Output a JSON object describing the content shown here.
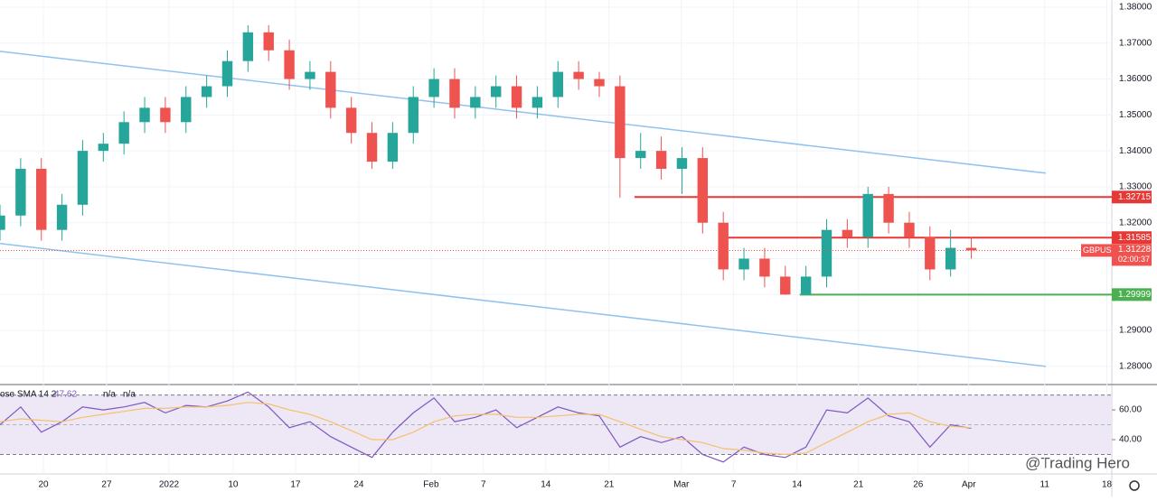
{
  "chart_data": [
    {
      "type": "candlestick",
      "symbol": "GBPUSD",
      "last": 1.31228,
      "countdown": "02:00:37",
      "up_color": "#26a69a",
      "down_color": "#ef5350",
      "x": [
        0,
        1,
        2,
        3,
        4,
        5,
        6,
        7,
        8,
        9,
        10,
        11,
        12,
        13,
        14,
        15,
        16,
        17,
        18,
        19,
        20,
        21,
        22,
        23,
        24,
        25,
        26,
        27,
        28,
        29,
        30,
        31,
        32,
        33,
        34,
        35,
        36,
        37,
        38,
        39,
        40,
        41,
        42,
        43,
        44,
        45,
        46,
        47
      ],
      "open": [
        1.318,
        1.322,
        1.335,
        1.318,
        1.325,
        1.34,
        1.342,
        1.348,
        1.352,
        1.348,
        1.355,
        1.358,
        1.365,
        1.373,
        1.368,
        1.36,
        1.362,
        1.352,
        1.345,
        1.337,
        1.345,
        1.355,
        1.36,
        1.352,
        1.355,
        1.358,
        1.352,
        1.355,
        1.362,
        1.36,
        1.358,
        1.338,
        1.34,
        1.335,
        1.338,
        1.32,
        1.307,
        1.31,
        1.305,
        1.3,
        1.305,
        1.318,
        1.316,
        1.328,
        1.32,
        1.316,
        1.307,
        1.313
      ],
      "high": [
        1.325,
        1.338,
        1.338,
        1.328,
        1.343,
        1.345,
        1.351,
        1.355,
        1.355,
        1.358,
        1.361,
        1.368,
        1.375,
        1.375,
        1.371,
        1.365,
        1.365,
        1.355,
        1.348,
        1.348,
        1.358,
        1.363,
        1.363,
        1.358,
        1.361,
        1.361,
        1.358,
        1.365,
        1.365,
        1.362,
        1.361,
        1.345,
        1.344,
        1.341,
        1.341,
        1.323,
        1.313,
        1.313,
        1.308,
        1.308,
        1.321,
        1.321,
        1.33,
        1.33,
        1.323,
        1.319,
        1.318,
        1.316
      ],
      "low": [
        1.315,
        1.319,
        1.315,
        1.315,
        1.322,
        1.337,
        1.339,
        1.345,
        1.345,
        1.345,
        1.352,
        1.355,
        1.362,
        1.365,
        1.357,
        1.357,
        1.349,
        1.342,
        1.335,
        1.335,
        1.342,
        1.352,
        1.349,
        1.349,
        1.352,
        1.349,
        1.349,
        1.352,
        1.357,
        1.355,
        1.327,
        1.335,
        1.332,
        1.328,
        1.317,
        1.304,
        1.304,
        1.302,
        1.2999,
        1.2999,
        1.302,
        1.313,
        1.313,
        1.317,
        1.313,
        1.304,
        1.305,
        1.31
      ],
      "close": [
        1.322,
        1.335,
        1.318,
        1.325,
        1.34,
        1.342,
        1.348,
        1.352,
        1.348,
        1.355,
        1.358,
        1.365,
        1.373,
        1.368,
        1.36,
        1.362,
        1.352,
        1.345,
        1.337,
        1.345,
        1.355,
        1.36,
        1.352,
        1.355,
        1.358,
        1.352,
        1.355,
        1.362,
        1.36,
        1.358,
        1.338,
        1.34,
        1.335,
        1.338,
        1.32,
        1.307,
        1.31,
        1.305,
        1.3,
        1.305,
        1.318,
        1.316,
        1.328,
        1.32,
        1.316,
        1.307,
        1.313,
        1.3123
      ],
      "xlim": [
        0,
        53.8
      ],
      "xticks": [
        {
          "value": 2.1,
          "label": "20"
        },
        {
          "value": 5.16,
          "label": "27"
        },
        {
          "value": 8.18,
          "label": "2022"
        },
        {
          "value": 11.28,
          "label": "10"
        },
        {
          "value": 14.3,
          "label": "17"
        },
        {
          "value": 17.36,
          "label": "24"
        },
        {
          "value": 20.86,
          "label": "Feb"
        },
        {
          "value": 23.39,
          "label": "7"
        },
        {
          "value": 26.41,
          "label": "14"
        },
        {
          "value": 29.47,
          "label": "21"
        },
        {
          "value": 32.97,
          "label": "Mar"
        },
        {
          "value": 35.5,
          "label": "7"
        },
        {
          "value": 38.57,
          "label": "14"
        },
        {
          "value": 41.54,
          "label": "21"
        },
        {
          "value": 44.43,
          "label": "26"
        },
        {
          "value": 46.88,
          "label": "Apr"
        },
        {
          "value": 50.55,
          "label": "11"
        },
        {
          "value": 53.56,
          "label": "18"
        }
      ],
      "ylim": [
        1.2752,
        1.382
      ],
      "yticks": [
        {
          "value": 1.28,
          "label": "1.28000"
        },
        {
          "value": 1.29,
          "label": "1.29000"
        },
        {
          "value": 1.3,
          "label": "1.30000"
        },
        {
          "value": 1.31,
          "label": "1.31000"
        },
        {
          "value": 1.32,
          "label": "1.32000"
        },
        {
          "value": 1.33,
          "label": "1.33000"
        },
        {
          "value": 1.34,
          "label": "1.34000"
        },
        {
          "value": 1.35,
          "label": "1.35000"
        },
        {
          "value": 1.36,
          "label": "1.36000"
        },
        {
          "value": 1.37,
          "label": "1.37000"
        },
        {
          "value": 1.38,
          "label": "1.38000"
        }
      ],
      "levels": [
        {
          "value": 1.32715,
          "color": "#e53935",
          "start": 30.7
        },
        {
          "value": 1.31585,
          "color": "#e53935",
          "start": 35
        },
        {
          "value": 1.29999,
          "color": "#4caf50",
          "start": 38.7
        }
      ],
      "trendlines": [
        {
          "x": [
            0,
            50.6
          ],
          "y": [
            1.3677,
            1.3338
          ],
          "color": "#90c2f0"
        },
        {
          "x": [
            0,
            50.6
          ],
          "y": [
            1.3142,
            1.28
          ],
          "color": "#90c2f0"
        }
      ]
    },
    {
      "type": "line",
      "title": "ose SMA 14 2",
      "na_labels": [
        "n/a",
        "n/a"
      ],
      "series": [
        {
          "color": "#7e57c2",
          "values": [
            50,
            62,
            45,
            52,
            62,
            60,
            62,
            65,
            58,
            63,
            62,
            66,
            72,
            62,
            48,
            52,
            42,
            35,
            28,
            45,
            58,
            68,
            52,
            55,
            60,
            48,
            55,
            62,
            58,
            56,
            35,
            42,
            38,
            42,
            30,
            25,
            35,
            30,
            28,
            35,
            60,
            58,
            68,
            56,
            52,
            35,
            50,
            47.62
          ]
        },
        {
          "color": "#f5c16c",
          "values": [
            52,
            54,
            53,
            52,
            55,
            57,
            59,
            61,
            61,
            62,
            62,
            63,
            65,
            64,
            60,
            57,
            52,
            46,
            40,
            40,
            45,
            52,
            56,
            57,
            57,
            55,
            55,
            56,
            57,
            57,
            52,
            47,
            42,
            40,
            38,
            34,
            33,
            31,
            30,
            31,
            38,
            45,
            52,
            57,
            58,
            52,
            49,
            48
          ]
        }
      ],
      "band": [
        30,
        70
      ],
      "mid": 50,
      "band_color": "#ede7f6",
      "ylim": [
        18.8,
        75.8
      ],
      "yticks": [
        {
          "value": 60,
          "label": "60.00"
        },
        {
          "value": 40,
          "label": "40.00"
        }
      ]
    }
  ],
  "watermark": "@Trading Hero"
}
